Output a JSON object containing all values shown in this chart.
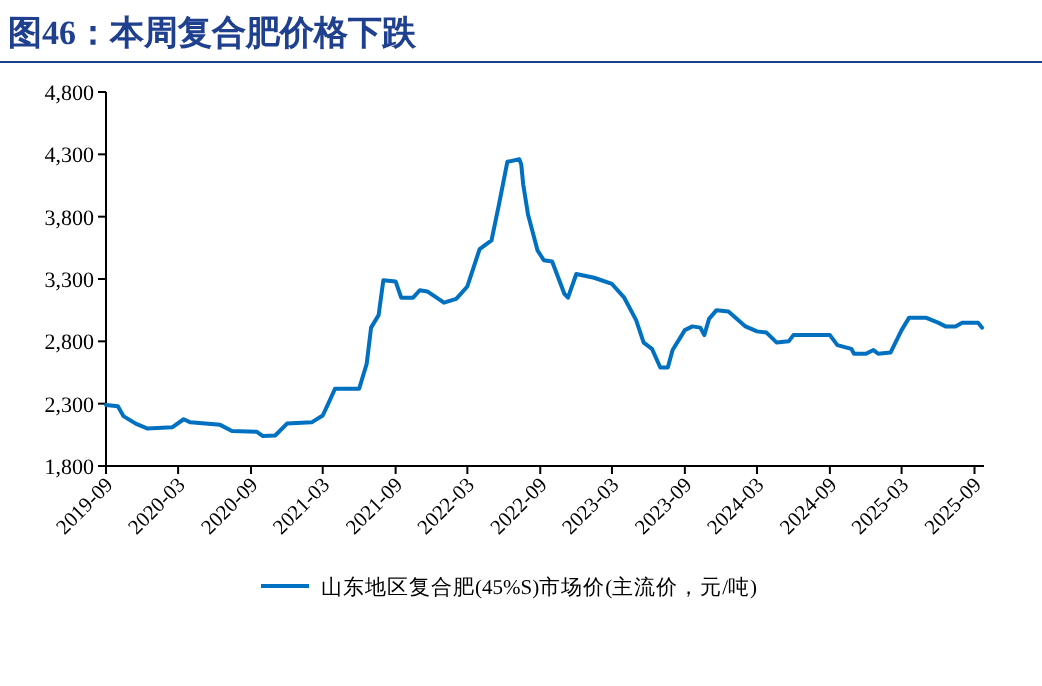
{
  "chart_data": {
    "type": "line",
    "title": "图46：本周复合肥价格下跌",
    "x": [
      "2019-09-01",
      "2019-10-01",
      "2019-10-15",
      "2019-11-15",
      "2019-12-15",
      "2020-02-15",
      "2020-03-15",
      "2020-04-01",
      "2020-06-15",
      "2020-07-15",
      "2020-09-15",
      "2020-10-01",
      "2020-11-01",
      "2020-12-01",
      "2021-02-01",
      "2021-03-01",
      "2021-03-15",
      "2021-04-01",
      "2021-06-01",
      "2021-06-20",
      "2021-07-01",
      "2021-07-20",
      "2021-08-01",
      "2021-09-01",
      "2021-09-15",
      "2021-10-15",
      "2021-11-01",
      "2021-11-20",
      "2022-01-01",
      "2022-02-01",
      "2022-03-01",
      "2022-04-01",
      "2022-05-01",
      "2022-05-20",
      "2022-06-10",
      "2022-07-10",
      "2022-07-15",
      "2022-07-20",
      "2022-08-01",
      "2022-08-25",
      "2022-09-10",
      "2022-10-01",
      "2022-11-01",
      "2022-11-10",
      "2022-12-01",
      "2023-01-15",
      "2023-03-01",
      "2023-04-01",
      "2023-05-01",
      "2023-05-20",
      "2023-06-10",
      "2023-07-01",
      "2023-07-20",
      "2023-08-01",
      "2023-09-01",
      "2023-09-20",
      "2023-10-10",
      "2023-10-20",
      "2023-11-01",
      "2023-11-20",
      "2023-12-20",
      "2024-02-01",
      "2024-03-01",
      "2024-03-25",
      "2024-04-20",
      "2024-05-20",
      "2024-06-01",
      "2024-09-01",
      "2024-09-20",
      "2024-10-25",
      "2024-11-01",
      "2024-12-01",
      "2024-12-20",
      "2025-01-01",
      "2025-02-01",
      "2025-03-01",
      "2025-03-20",
      "2025-05-01",
      "2025-06-01",
      "2025-06-20",
      "2025-07-15",
      "2025-08-01",
      "2025-09-10",
      "2025-09-20"
    ],
    "series": [
      {
        "name": "山东地区复合肥(45%S)市场价(主流价，元/吨)",
        "color": "#0070c0",
        "values": [
          2290,
          2280,
          2200,
          2140,
          2100,
          2110,
          2175,
          2150,
          2130,
          2080,
          2075,
          2040,
          2045,
          2140,
          2150,
          2205,
          2300,
          2420,
          2420,
          2620,
          2910,
          3010,
          3290,
          3280,
          3150,
          3150,
          3210,
          3200,
          3110,
          3140,
          3240,
          3540,
          3610,
          3900,
          4240,
          4260,
          4220,
          4060,
          3820,
          3530,
          3450,
          3440,
          3180,
          3150,
          3340,
          3310,
          3260,
          3150,
          2970,
          2790,
          2740,
          2590,
          2590,
          2730,
          2890,
          2920,
          2910,
          2850,
          2980,
          3050,
          3040,
          2920,
          2880,
          2870,
          2790,
          2800,
          2850,
          2850,
          2770,
          2740,
          2700,
          2700,
          2730,
          2700,
          2710,
          2890,
          2990,
          2990,
          2950,
          2920,
          2920,
          2950,
          2950,
          2910
        ]
      }
    ],
    "xlim": [
      "2019-09-01",
      "2025-09-25"
    ],
    "xticks": [
      "2019-09",
      "2020-03",
      "2020-09",
      "2021-03",
      "2021-09",
      "2022-03",
      "2022-09",
      "2023-03",
      "2023-09",
      "2024-03",
      "2024-09",
      "2025-03",
      "2025-09"
    ],
    "ylim": [
      1800,
      4800
    ],
    "yticks": [
      {
        "value": 1800,
        "label": "1,800"
      },
      {
        "value": 2300,
        "label": "2,300"
      },
      {
        "value": 2800,
        "label": "2,800"
      },
      {
        "value": 3300,
        "label": "3,300"
      },
      {
        "value": 3800,
        "label": "3,800"
      },
      {
        "value": 4300,
        "label": "4,300"
      },
      {
        "value": 4800,
        "label": "4,800"
      }
    ],
    "grid": false,
    "legend": "bottom",
    "marker": "none",
    "line_style": "solid"
  }
}
